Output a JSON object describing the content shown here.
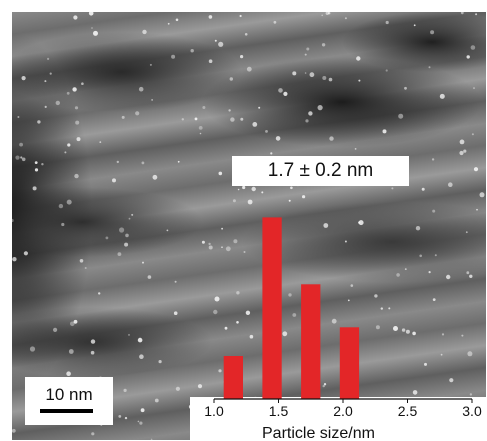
{
  "size_label": "1.7 ± 0.2 nm",
  "scale_bar_label": "10 nm",
  "colors": {
    "bar": "#e32628"
  },
  "chart_data": {
    "type": "bar",
    "x": [
      1.15,
      1.45,
      1.75,
      2.05
    ],
    "values": [
      0.18,
      0.76,
      0.48,
      0.3
    ],
    "xlabel": "Particle size/nm",
    "xlim": [
      1.0,
      3.0
    ],
    "xticks": [
      "1.0",
      "1.5",
      "2.0",
      "2.5",
      "3.0"
    ],
    "bar_width": 0.15
  }
}
